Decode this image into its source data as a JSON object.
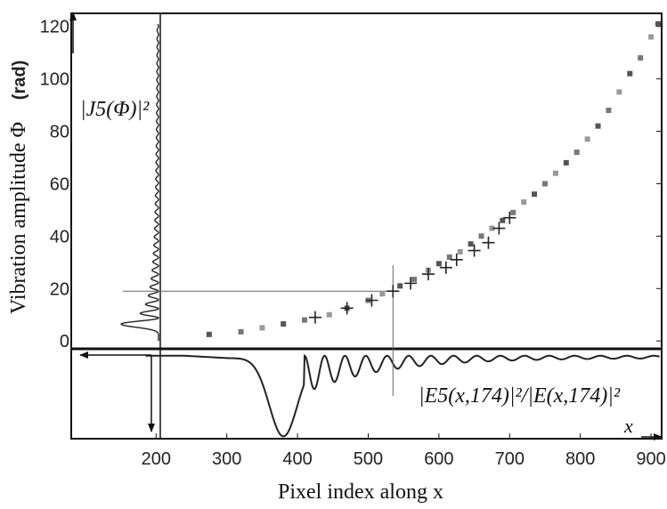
{
  "chart_data": [
    {
      "type": "scatter",
      "panel": "top",
      "xlabel": "Pixel index along x",
      "ylabel": "Vibration amplitude Φ",
      "ylabel_unit": "(rad)",
      "xlim": [
        80,
        915
      ],
      "ylim": [
        -3,
        125
      ],
      "x_ticks": [
        "200",
        "300",
        "400",
        "500",
        "600",
        "700",
        "800",
        "900"
      ],
      "y_ticks": [
        "0",
        "20",
        "40",
        "60",
        "80",
        "100",
        "120"
      ],
      "grid": false,
      "side_curve_label": "|J5(Φ)|²",
      "guide_point": {
        "x": 535,
        "y": 19
      },
      "series": [
        {
          "marker": "square",
          "x": [
            275,
            320,
            350,
            380,
            410,
            445,
            470,
            500,
            520,
            545,
            565,
            585,
            600,
            615,
            630,
            645,
            660,
            675,
            690,
            705,
            720,
            735,
            750,
            765,
            780,
            795,
            810,
            825,
            840,
            855,
            870,
            885,
            900,
            910
          ],
          "y": [
            2.5,
            3.5,
            5,
            6.5,
            8,
            10,
            12.5,
            15.5,
            18,
            21,
            23.5,
            27,
            29.5,
            32,
            34,
            37,
            40,
            43,
            46,
            49,
            53,
            56,
            60,
            64,
            68,
            72,
            77,
            82,
            88,
            95,
            102,
            108,
            116,
            121
          ]
        },
        {
          "marker": "plus",
          "x": [
            425,
            470,
            505,
            535,
            560,
            585,
            610,
            625,
            650,
            670,
            685,
            700
          ],
          "y": [
            9,
            12.5,
            15.5,
            19,
            22,
            25.5,
            28,
            31,
            34.5,
            37.5,
            43,
            47
          ]
        }
      ]
    },
    {
      "type": "line",
      "panel": "bottom",
      "xlabel": "x",
      "curve_label": "|E5(x,174)|²/|E(x,174)|²",
      "description_points_x": [
        185,
        240,
        290,
        320,
        350,
        365,
        380,
        400,
        425,
        440,
        455,
        470,
        490,
        505,
        520,
        535,
        550,
        570,
        600,
        640,
        700,
        780,
        860,
        912
      ],
      "description_points_y": [
        0.0,
        -0.02,
        -0.05,
        -0.25,
        -0.7,
        -0.92,
        -1.0,
        -0.55,
        -0.12,
        -0.5,
        -0.1,
        -0.35,
        -0.08,
        -0.25,
        -0.07,
        -0.18,
        -0.06,
        -0.12,
        -0.07,
        -0.05,
        -0.04,
        -0.03,
        -0.02,
        -0.02
      ]
    }
  ],
  "labels": {
    "ylabel": "Vibration amplitude Φ",
    "ylabel_unit": "(rad)",
    "xlabel": "Pixel index along x",
    "bessel": "|J5(Φ)|²",
    "ratio": "|E5(x,174)|²/|E(x,174)|²",
    "x_arrow": "x"
  },
  "colors": {
    "axis": "#111111",
    "square_marker": "#666666",
    "plus_marker": "#222222",
    "curve": "#222222"
  }
}
